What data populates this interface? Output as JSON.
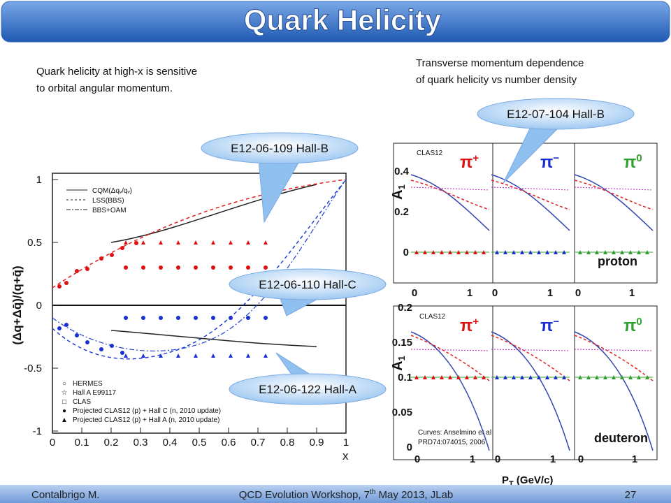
{
  "header": {
    "title": "Quark Helicity"
  },
  "left_text": {
    "lines": [
      "Quark helicity at high-x  is sensitive",
      "to orbital angular momentum."
    ]
  },
  "right_text": {
    "lines": [
      "Transverse momentum dependence",
      "of quark helicity vs number density"
    ]
  },
  "left_plot": {
    "y_label": "(Δq+Δq̄)/(q+q̄)",
    "x_label": "x",
    "yticks": [
      "1",
      "0.5",
      "0",
      "-0.5",
      "-1"
    ],
    "xticks": [
      "0",
      "0.1",
      "0.2",
      "0.3",
      "0.4",
      "0.5",
      "0.6",
      "0.7",
      "0.8",
      "0.9",
      "1"
    ],
    "curve_legend": [
      "CQM(Δqᵥ/qᵥ)",
      "LSS(BBS)",
      "BBS+OAM"
    ],
    "data_legend": [
      "HERMES",
      "Hall A E99117",
      "CLAS",
      "Projected CLAS12 (p) + Hall C (n, 2010 update)",
      "Projected CLAS12 (p) + Hall A (n, 2010 update)"
    ]
  },
  "right_plot": {
    "panels": [
      {
        "base": "π",
        "sup": "+"
      },
      {
        "base": "π",
        "sup": "−"
      },
      {
        "base": "π",
        "sup": "0"
      }
    ],
    "experiment": "CLAS12",
    "y_label": {
      "base": "A",
      "sub": "1"
    },
    "top_yticks": [
      "0.4",
      "0.2",
      "0"
    ],
    "bottom_yticks": [
      "0.2",
      "0.15",
      "0.1",
      "0.05",
      "0"
    ],
    "xticks": [
      "0",
      "1"
    ],
    "top_target": "proton",
    "bottom_target": "deuteron",
    "curves_note": [
      "Curves: Anselmino et al",
      "PRD74:074015, 2006"
    ],
    "x_label": {
      "base": "P",
      "sub": "T",
      "rest": " (GeV/c)"
    }
  },
  "callouts": [
    "E12-06-109  Hall-B",
    "E12-06-110  Hall-C",
    "E12-06-122  Hall-A",
    "E12-07-104  Hall-B"
  ],
  "footer": {
    "author": "Contalbrigo M.",
    "event_pre": "QCD Evolution Workshop, 7",
    "event_sup": "th",
    "event_post": " May 2013, JLab",
    "page": "27"
  }
}
